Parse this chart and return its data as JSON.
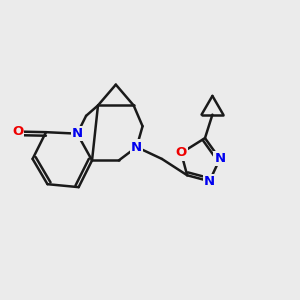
{
  "background_color": "#ebebeb",
  "bond_color": "#1a1a1a",
  "bond_width": 1.8,
  "atom_colors": {
    "N": "#0000ee",
    "O": "#ee0000",
    "C": "#1a1a1a"
  },
  "font_size_atom": 9.5,
  "fig_size": [
    3.0,
    3.0
  ],
  "dpi": 100
}
